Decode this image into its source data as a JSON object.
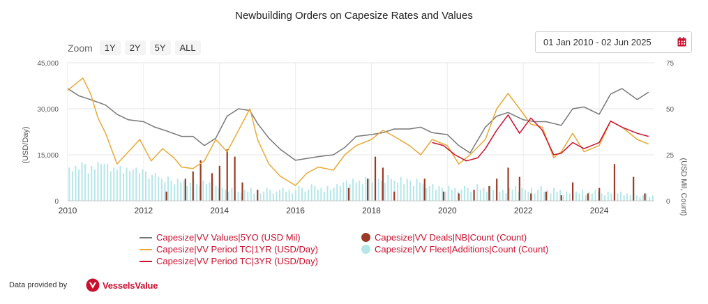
{
  "title": "Newbuilding Orders on Capesize Rates and Values",
  "zoom": {
    "label": "Zoom",
    "buttons": [
      "1Y",
      "2Y",
      "5Y",
      "ALL"
    ]
  },
  "date_range": "01 Jan 2010 - 02 Jun 2025",
  "footer": {
    "text": "Data provided by",
    "logo": "VesselsValue"
  },
  "colors": {
    "values": "#777777",
    "tc1yr": "#e8a935",
    "tc3yr": "#c8102e",
    "deals": "#9b3a26",
    "fleet": "#b5e6e8",
    "accent": "#c8102e"
  },
  "chart_data": {
    "type": "line",
    "title": "Newbuilding Orders on Capesize Rates and Values",
    "x_ticks": [
      "2010",
      "2012",
      "2014",
      "2016",
      "2018",
      "2020",
      "2022",
      "2024"
    ],
    "xlim": [
      2010,
      2025.45
    ],
    "y_left": {
      "label": "(USD/Day)",
      "ticks": [
        "0",
        "15,000",
        "30,000",
        "45,000"
      ],
      "ylim": [
        0,
        45000
      ]
    },
    "y_right": {
      "label": "(USD Mil, Count)",
      "ticks": [
        "0",
        "25",
        "50",
        "75"
      ],
      "ylim": [
        0,
        75
      ]
    },
    "legend_placement": "bottom",
    "series": [
      {
        "name": "Capesize|VV Values|5YO (USD Mil)",
        "axis": "right",
        "kind": "line",
        "x": [
          2010.0,
          2010.3,
          2010.6,
          2011.0,
          2011.3,
          2011.6,
          2012.0,
          2012.3,
          2012.6,
          2013.0,
          2013.3,
          2013.6,
          2013.9,
          2014.2,
          2014.5,
          2014.8,
          2015.0,
          2015.3,
          2015.6,
          2016.0,
          2016.3,
          2016.6,
          2017.0,
          2017.3,
          2017.6,
          2018.0,
          2018.3,
          2018.6,
          2019.0,
          2019.3,
          2019.6,
          2020.0,
          2020.3,
          2020.6,
          2021.0,
          2021.3,
          2021.6,
          2022.0,
          2022.3,
          2022.6,
          2023.0,
          2023.3,
          2023.6,
          2024.0,
          2024.3,
          2024.6,
          2025.0,
          2025.3
        ],
        "values": [
          61,
          57,
          55,
          52,
          47,
          44,
          43,
          40,
          38,
          35,
          35,
          30,
          34,
          46,
          50,
          49,
          42,
          34,
          28,
          22,
          23,
          24,
          25,
          29,
          35,
          36,
          37,
          39,
          39,
          40,
          37,
          36,
          30,
          26,
          40,
          46,
          48,
          44,
          43,
          43,
          41,
          50,
          51,
          47,
          58,
          61,
          55,
          59
        ]
      },
      {
        "name": "Capesize|VV Period TC|1YR (USD/Day)",
        "axis": "left",
        "kind": "line",
        "x": [
          2010.0,
          2010.2,
          2010.4,
          2010.6,
          2010.8,
          2011.0,
          2011.3,
          2011.6,
          2011.9,
          2012.2,
          2012.5,
          2012.8,
          2013.0,
          2013.3,
          2013.6,
          2013.9,
          2014.2,
          2014.5,
          2014.8,
          2015.0,
          2015.3,
          2015.6,
          2016.0,
          2016.3,
          2016.6,
          2017.0,
          2017.3,
          2017.6,
          2018.0,
          2018.3,
          2018.6,
          2019.0,
          2019.3,
          2019.6,
          2020.0,
          2020.3,
          2020.6,
          2021.0,
          2021.3,
          2021.6,
          2021.9,
          2022.2,
          2022.5,
          2022.8,
          2023.0,
          2023.3,
          2023.6,
          2024.0,
          2024.3,
          2024.6,
          2025.0,
          2025.3
        ],
        "values": [
          36000,
          38000,
          40000,
          35000,
          27000,
          22000,
          12000,
          16000,
          20000,
          13000,
          17000,
          14000,
          11000,
          10500,
          13000,
          20000,
          16000,
          23000,
          30000,
          20000,
          12000,
          8000,
          5000,
          9000,
          11000,
          10000,
          15000,
          18000,
          20000,
          23000,
          21000,
          18000,
          15000,
          20000,
          18000,
          12000,
          15000,
          20000,
          30000,
          35000,
          30000,
          25000,
          24000,
          14000,
          16000,
          22000,
          16000,
          18000,
          26000,
          24000,
          20000,
          18500
        ]
      },
      {
        "name": "Capesize|VV Period TC|3YR (USD/Day)",
        "axis": "left",
        "kind": "line",
        "x": [
          2019.6,
          2019.9,
          2020.2,
          2020.5,
          2020.8,
          2021.0,
          2021.3,
          2021.6,
          2021.9,
          2022.2,
          2022.5,
          2022.8,
          2023.0,
          2023.3,
          2023.6,
          2024.0,
          2024.3,
          2024.6,
          2025.0,
          2025.3
        ],
        "values": [
          19000,
          18000,
          15000,
          13000,
          14000,
          17000,
          23000,
          28000,
          22000,
          27000,
          23000,
          15000,
          15500,
          19000,
          17000,
          19000,
          26000,
          24000,
          22000,
          21000
        ]
      },
      {
        "name": "Capesize|VV Deals|NB|Count (Count)",
        "axis": "right",
        "kind": "bar",
        "x": [
          2012.6,
          2013.1,
          2013.3,
          2013.5,
          2013.8,
          2014.0,
          2014.2,
          2014.4,
          2014.6,
          2015.0,
          2017.4,
          2017.9,
          2018.1,
          2018.3,
          2018.6,
          2019.4,
          2019.9,
          2020.3,
          2020.7,
          2021.1,
          2021.3,
          2021.6,
          2021.9,
          2022.2,
          2022.6,
          2023.0,
          2023.3,
          2023.7,
          2024.0,
          2024.4,
          2024.9,
          2025.2
        ],
        "values": [
          5,
          12,
          16,
          22,
          15,
          19,
          28,
          24,
          10,
          6,
          7,
          12,
          24,
          18,
          5,
          12,
          5,
          4,
          6,
          8,
          12,
          18,
          13,
          4,
          5,
          3,
          10,
          4,
          7,
          20,
          13,
          4
        ]
      },
      {
        "name": "Capesize|VV Fleet|Additions|Count (Count)",
        "axis": "right",
        "kind": "bar",
        "x_range": [
          2010.0,
          2025.45
        ],
        "monthly_values": [
          18,
          16,
          19,
          17,
          21,
          20,
          15,
          19,
          17,
          21,
          20,
          20,
          20,
          16,
          18,
          17,
          19,
          15,
          18,
          16,
          17,
          18,
          15,
          17,
          16,
          12,
          14,
          15,
          13,
          12,
          10,
          13,
          11,
          9,
          12,
          10,
          11,
          8,
          10,
          12,
          9,
          8,
          11,
          9,
          10,
          12,
          8,
          7,
          7,
          6,
          5,
          7,
          6,
          5,
          4,
          6,
          5,
          7,
          4,
          6,
          4,
          5,
          7,
          6,
          4,
          5,
          6,
          7,
          5,
          6,
          4,
          6,
          8,
          7,
          5,
          6,
          9,
          8,
          6,
          7,
          5,
          8,
          6,
          7,
          9,
          8,
          10,
          11,
          9,
          12,
          10,
          11,
          9,
          13,
          12,
          10,
          13,
          12,
          11,
          10,
          14,
          12,
          11,
          10,
          13,
          9,
          12,
          11,
          8,
          12,
          10,
          9,
          7,
          8,
          9,
          6,
          8,
          7,
          5,
          8,
          6,
          7,
          5,
          6,
          8,
          7,
          5,
          4,
          9,
          6,
          7,
          5,
          8,
          6,
          9,
          5,
          6,
          4,
          7,
          6,
          8,
          5,
          7,
          6,
          5,
          7,
          4,
          6,
          8,
          5,
          6,
          4,
          7,
          5,
          6,
          3,
          5,
          4,
          6,
          5,
          4,
          6,
          3,
          5,
          4,
          6,
          5,
          4,
          3,
          5,
          4,
          3,
          4,
          5,
          3,
          4,
          3,
          4,
          3,
          2,
          3,
          4,
          2,
          3
        ]
      }
    ]
  }
}
